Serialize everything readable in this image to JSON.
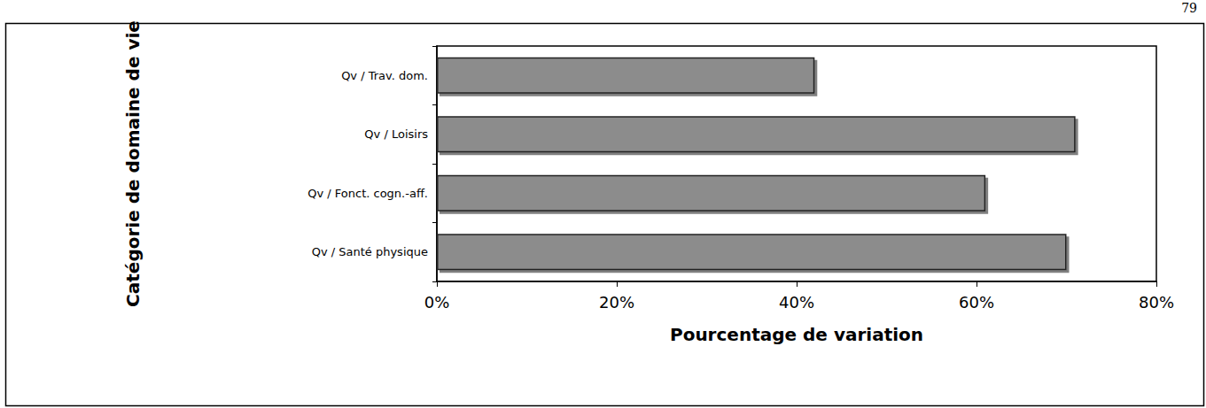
{
  "chart_data": {
    "type": "bar",
    "orientation": "horizontal",
    "categories": [
      "Qv / Trav. dom.",
      "Qv / Loisirs",
      "Qv / Fonct. cogn.-aff.",
      "Qv / Santé physique"
    ],
    "values": [
      42,
      71,
      61,
      70
    ],
    "color": "#8c8c8c",
    "x_label": "Pourcentage de variation",
    "y_label": "Catégorie de domaine de vie",
    "xlim": [
      0,
      80
    ],
    "xticks": [
      {
        "value": 0,
        "label": "0%"
      },
      {
        "value": 20,
        "label": "20%"
      },
      {
        "value": 40,
        "label": "40%"
      },
      {
        "value": 60,
        "label": "60%"
      },
      {
        "value": 80,
        "label": "80%"
      }
    ],
    "grid": false,
    "annotations": [
      "79"
    ]
  }
}
